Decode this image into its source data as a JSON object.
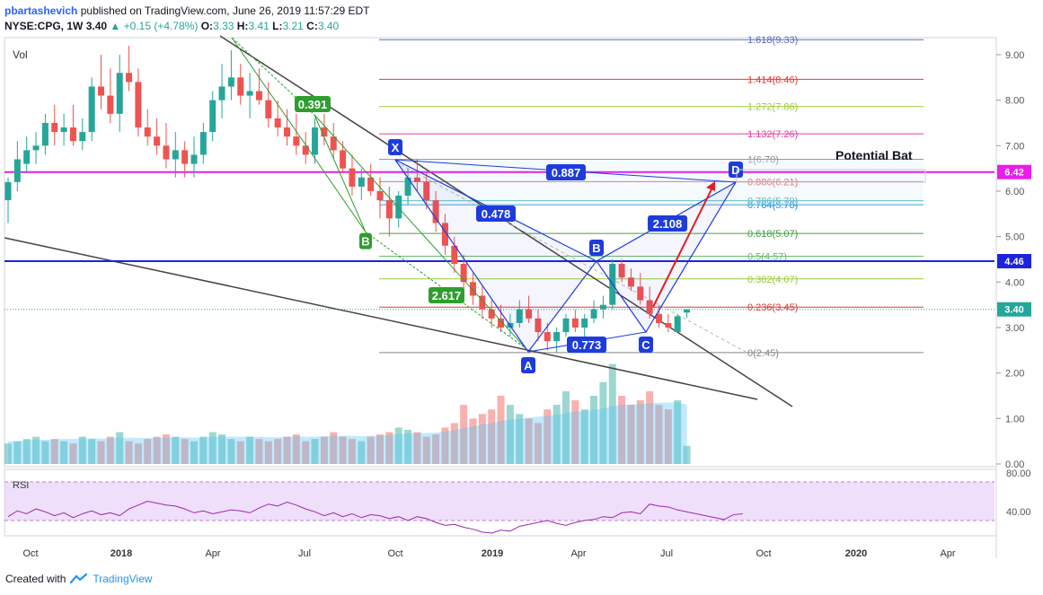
{
  "header": {
    "author": "pbartashevich",
    "published": "published on TradingView.com, June 26, 2019 11:57:29 EDT",
    "symbol": "NYSE:CPG, 1W",
    "price": "3.40",
    "change": "+0.15 (+4.78%)",
    "o_label": "O:",
    "o": "3.33",
    "h_label": "H:",
    "h": "3.41",
    "l_label": "L:",
    "l": "3.21",
    "c_label": "C:",
    "c": "3.40"
  },
  "footer": {
    "created_with": "Created with",
    "brand": "TradingView"
  },
  "colors": {
    "up": "#26a69a",
    "down": "#ef5350",
    "magenta": "#e91ee9",
    "blue": "#0000ff",
    "pattern": "#1e3cdc",
    "rsi": "#9c27b0"
  },
  "chart_data": {
    "type": "candlestick",
    "symbol": "NYSE:CPG",
    "interval": "1W",
    "ylim": [
      0,
      9.4
    ],
    "y_ticks": [
      "9.00",
      "8.00",
      "7.00",
      "6.00",
      "5.00",
      "4.00",
      "3.00",
      "2.00",
      "1.00",
      "0.00"
    ],
    "x_ticks": [
      "Oct",
      "2018",
      "Apr",
      "Jul",
      "Oct",
      "2019",
      "Apr",
      "Jul",
      "Oct",
      "2020",
      "Apr"
    ],
    "volume_label": "Vol",
    "price_badges": [
      {
        "value": "6.42",
        "color": "#e91ee9"
      },
      {
        "value": "4.46",
        "color": "#1e22e0"
      },
      {
        "value": "3.40",
        "color": "#26a69a"
      }
    ],
    "horizontal_lines": [
      {
        "value": 6.42,
        "color": "#e91ee9"
      },
      {
        "value": 4.46,
        "color": "#1e22e0"
      }
    ],
    "fibonacci": [
      {
        "label": "1.618(9.33)",
        "value": 9.33,
        "color": "#5c6bc0"
      },
      {
        "label": "1.414(8.46)",
        "value": 8.46,
        "color": "#e53935"
      },
      {
        "label": "1.272(7.86)",
        "value": 7.86,
        "color": "#9ccc3c"
      },
      {
        "label": "1.132(7.26)",
        "value": 7.26,
        "color": "#e040a0"
      },
      {
        "label": "1(6.70)",
        "value": 6.7,
        "color": "#888888"
      },
      {
        "label": "0.886(6.21)",
        "value": 6.21,
        "color": "#e53935"
      },
      {
        "label": "0.786(5.79)",
        "value": 5.79,
        "color": "#26a69a"
      },
      {
        "label": "0.764(5.70)",
        "value": 5.7,
        "color": "#1e88e5"
      },
      {
        "label": "0.618(5.07)",
        "value": 5.07,
        "color": "#43a047"
      },
      {
        "label": "0.5(4.57)",
        "value": 4.57,
        "color": "#66bb6a"
      },
      {
        "label": "0.382(4.07)",
        "value": 4.07,
        "color": "#9ccc3c"
      },
      {
        "label": "0.236(3.45)",
        "value": 3.45,
        "color": "#e53935"
      },
      {
        "label": "0(2.45)",
        "value": 2.45,
        "color": "#888888"
      }
    ],
    "pattern_points": [
      {
        "label": "X",
        "date": "2018-10-01",
        "value": 6.7
      },
      {
        "label": "A",
        "date": "2019-02-11",
        "value": 2.45
      },
      {
        "label": "B",
        "date": "2019-04-15",
        "value": 4.46
      },
      {
        "label": "C",
        "date": "2019-06-03",
        "value": 2.95
      },
      {
        "label": "D",
        "date": "2019-08-26",
        "value": 6.21
      }
    ],
    "pattern_ratios": [
      {
        "label": "0.887",
        "color": "#1e3cdc"
      },
      {
        "label": "0.478",
        "color": "#1e3cdc"
      },
      {
        "label": "2.108",
        "color": "#1e3cdc"
      },
      {
        "label": "0.773",
        "color": "#1e3cdc"
      }
    ],
    "abcd_points": [
      {
        "label": "B",
        "value": 5.1
      }
    ],
    "abcd_ratios": [
      {
        "label": "0.391",
        "color": "#2e9e2e"
      },
      {
        "label": "2.617",
        "color": "#2e9e2e"
      }
    ],
    "annotation": "Potential Bat",
    "rsi": {
      "label": "RSI",
      "ticks": [
        "80.00",
        "40.00"
      ],
      "values": [
        44,
        50,
        47,
        52,
        49,
        45,
        48,
        43,
        47,
        50,
        46,
        48,
        45,
        52,
        56,
        60,
        58,
        56,
        55,
        52,
        48,
        50,
        47,
        49,
        51,
        50,
        48,
        53,
        57,
        55,
        59,
        56,
        52,
        49,
        45,
        48,
        44,
        47,
        43,
        46,
        45,
        42,
        44,
        40,
        44,
        42,
        38,
        35,
        36,
        33,
        31,
        28,
        27,
        30,
        29,
        34,
        36,
        38,
        40,
        37,
        35,
        38,
        40,
        41,
        44,
        43,
        48,
        49,
        47,
        57,
        55,
        54,
        51,
        49,
        47,
        45,
        43,
        41,
        46,
        47
      ]
    },
    "candles": [
      [
        5.8,
        6.3,
        5.3,
        6.2
      ],
      [
        6.2,
        7.1,
        6.0,
        6.7
      ],
      [
        6.6,
        7.2,
        6.4,
        6.9
      ],
      [
        6.9,
        7.3,
        6.6,
        7.0
      ],
      [
        7.0,
        7.7,
        6.8,
        7.5
      ],
      [
        7.5,
        7.9,
        7.0,
        7.3
      ],
      [
        7.3,
        7.7,
        7.0,
        7.4
      ],
      [
        7.4,
        7.9,
        7.0,
        7.1
      ],
      [
        7.1,
        7.6,
        6.9,
        7.3
      ],
      [
        7.3,
        8.5,
        7.1,
        8.3
      ],
      [
        8.3,
        9.0,
        7.8,
        8.1
      ],
      [
        8.1,
        8.7,
        7.5,
        7.7
      ],
      [
        7.7,
        9.0,
        7.3,
        8.6
      ],
      [
        8.6,
        9.2,
        8.2,
        8.4
      ],
      [
        8.4,
        8.7,
        7.2,
        7.4
      ],
      [
        7.4,
        7.8,
        7.0,
        7.2
      ],
      [
        7.2,
        7.6,
        6.8,
        7.0
      ],
      [
        7.0,
        7.5,
        6.5,
        6.7
      ],
      [
        6.7,
        7.3,
        6.3,
        6.9
      ],
      [
        6.9,
        7.1,
        6.3,
        6.6
      ],
      [
        6.6,
        7.2,
        6.3,
        6.8
      ],
      [
        6.8,
        7.5,
        6.6,
        7.3
      ],
      [
        7.3,
        8.2,
        7.1,
        8.0
      ],
      [
        8.0,
        8.8,
        7.6,
        8.3
      ],
      [
        8.3,
        9.1,
        8.0,
        8.5
      ],
      [
        8.5,
        8.8,
        7.9,
        8.1
      ],
      [
        8.1,
        8.6,
        7.6,
        8.2
      ],
      [
        8.2,
        8.7,
        7.9,
        8.0
      ],
      [
        8.0,
        8.4,
        7.4,
        7.6
      ],
      [
        7.6,
        8.0,
        7.2,
        7.4
      ],
      [
        7.4,
        7.8,
        7.0,
        7.2
      ],
      [
        7.2,
        7.7,
        6.8,
        7.0
      ],
      [
        7.0,
        7.3,
        6.6,
        6.8
      ],
      [
        6.8,
        7.6,
        6.6,
        7.4
      ],
      [
        7.4,
        7.7,
        7.0,
        7.2
      ],
      [
        7.2,
        7.5,
        6.7,
        6.9
      ],
      [
        6.9,
        7.1,
        6.4,
        6.5
      ],
      [
        6.5,
        6.8,
        5.9,
        6.1
      ],
      [
        6.1,
        6.5,
        5.8,
        6.3
      ],
      [
        6.3,
        6.6,
        5.9,
        6.0
      ],
      [
        6.0,
        6.3,
        5.4,
        5.8
      ],
      [
        5.8,
        6.1,
        5.0,
        5.4
      ],
      [
        5.4,
        6.0,
        5.2,
        5.9
      ],
      [
        5.9,
        6.5,
        5.7,
        6.3
      ],
      [
        6.3,
        6.7,
        6.0,
        6.2
      ],
      [
        6.2,
        6.4,
        5.6,
        5.8
      ],
      [
        5.8,
        6.0,
        5.1,
        5.3
      ],
      [
        5.3,
        5.5,
        4.6,
        4.8
      ],
      [
        4.8,
        5.0,
        4.2,
        4.4
      ],
      [
        4.4,
        4.6,
        3.8,
        4.0
      ],
      [
        4.0,
        4.2,
        3.5,
        3.7
      ],
      [
        3.7,
        3.9,
        3.2,
        3.4
      ],
      [
        3.4,
        3.6,
        3.0,
        3.2
      ],
      [
        3.2,
        3.5,
        2.9,
        3.0
      ],
      [
        3.0,
        3.3,
        2.8,
        3.1
      ],
      [
        3.1,
        3.6,
        3.0,
        3.4
      ],
      [
        3.4,
        3.7,
        3.1,
        3.2
      ],
      [
        3.2,
        3.4,
        2.7,
        2.9
      ],
      [
        2.9,
        3.1,
        2.5,
        2.7
      ],
      [
        2.7,
        3.0,
        2.45,
        2.9
      ],
      [
        2.9,
        3.3,
        2.8,
        3.2
      ],
      [
        3.2,
        3.4,
        2.9,
        3.0
      ],
      [
        3.0,
        3.3,
        2.8,
        3.2
      ],
      [
        3.2,
        3.6,
        3.1,
        3.4
      ],
      [
        3.4,
        3.7,
        3.2,
        3.5
      ],
      [
        3.5,
        4.5,
        3.4,
        4.4
      ],
      [
        4.4,
        4.5,
        4.0,
        4.1
      ],
      [
        4.1,
        4.3,
        3.8,
        3.9
      ],
      [
        3.9,
        4.2,
        3.5,
        3.6
      ],
      [
        3.6,
        3.9,
        3.2,
        3.3
      ],
      [
        3.3,
        3.5,
        3.0,
        3.1
      ],
      [
        3.1,
        3.3,
        2.9,
        3.0
      ],
      [
        2.9,
        3.3,
        2.9,
        3.25
      ],
      [
        3.33,
        3.41,
        3.21,
        3.4
      ]
    ],
    "volume": [
      0.45,
      0.5,
      0.55,
      0.6,
      0.5,
      0.55,
      0.5,
      0.45,
      0.6,
      0.55,
      0.5,
      0.6,
      0.7,
      0.5,
      0.45,
      0.55,
      0.6,
      0.65,
      0.6,
      0.55,
      0.5,
      0.6,
      0.7,
      0.65,
      0.55,
      0.5,
      0.6,
      0.55,
      0.5,
      0.55,
      0.6,
      0.65,
      0.5,
      0.55,
      0.6,
      0.7,
      0.6,
      0.55,
      0.5,
      0.6,
      0.65,
      0.7,
      0.8,
      0.75,
      0.7,
      0.6,
      0.65,
      0.8,
      0.9,
      1.3,
      1.0,
      1.1,
      1.2,
      1.5,
      1.3,
      1.1,
      1.0,
      0.9,
      1.2,
      1.3,
      1.6,
      1.4,
      1.2,
      1.5,
      1.8,
      2.2,
      1.5,
      1.3,
      1.4,
      1.6,
      1.3,
      1.2,
      1.4,
      0.4
    ],
    "volume_ma": [
      0.5,
      0.5,
      0.52,
      0.54,
      0.53,
      0.54,
      0.55,
      0.55,
      0.56,
      0.56,
      0.56,
      0.57,
      0.58,
      0.58,
      0.57,
      0.57,
      0.58,
      0.58,
      0.59,
      0.59,
      0.58,
      0.58,
      0.6,
      0.61,
      0.6,
      0.6,
      0.6,
      0.6,
      0.59,
      0.59,
      0.6,
      0.61,
      0.6,
      0.6,
      0.61,
      0.62,
      0.62,
      0.62,
      0.61,
      0.62,
      0.62,
      0.64,
      0.66,
      0.67,
      0.68,
      0.68,
      0.69,
      0.71,
      0.74,
      0.8,
      0.83,
      0.87,
      0.9,
      0.95,
      0.98,
      1.0,
      1.02,
      1.04,
      1.06,
      1.08,
      1.12,
      1.15,
      1.17,
      1.19,
      1.22,
      1.27,
      1.3,
      1.31,
      1.32,
      1.34,
      1.35,
      1.35,
      1.36,
      1.3
    ]
  }
}
